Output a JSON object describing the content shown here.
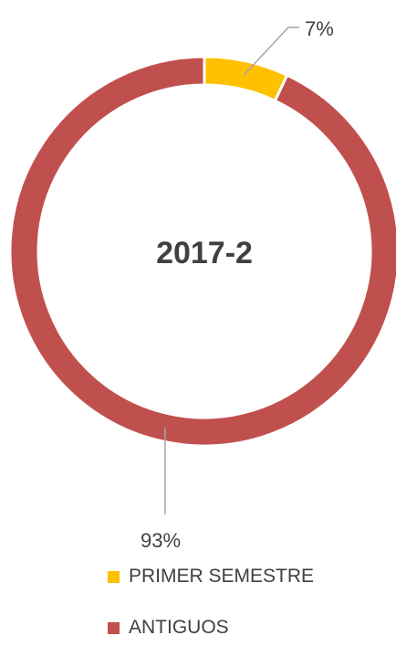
{
  "chart_data": {
    "type": "pie",
    "variant": "donut",
    "title": "2017-2",
    "categories": [
      "PRIMER SEMESTRE",
      "ANTIGUOS"
    ],
    "values": [
      7,
      93
    ],
    "unit": "%",
    "data_labels": [
      "7%",
      "93%"
    ],
    "colors": [
      "#FFC000",
      "#C0504D"
    ],
    "legend": "bottom",
    "legend_entries": [
      {
        "name": "PRIMER SEMESTRE",
        "color": "#FFC000"
      },
      {
        "name": "ANTIGUOS",
        "color": "#C0504D"
      }
    ]
  }
}
